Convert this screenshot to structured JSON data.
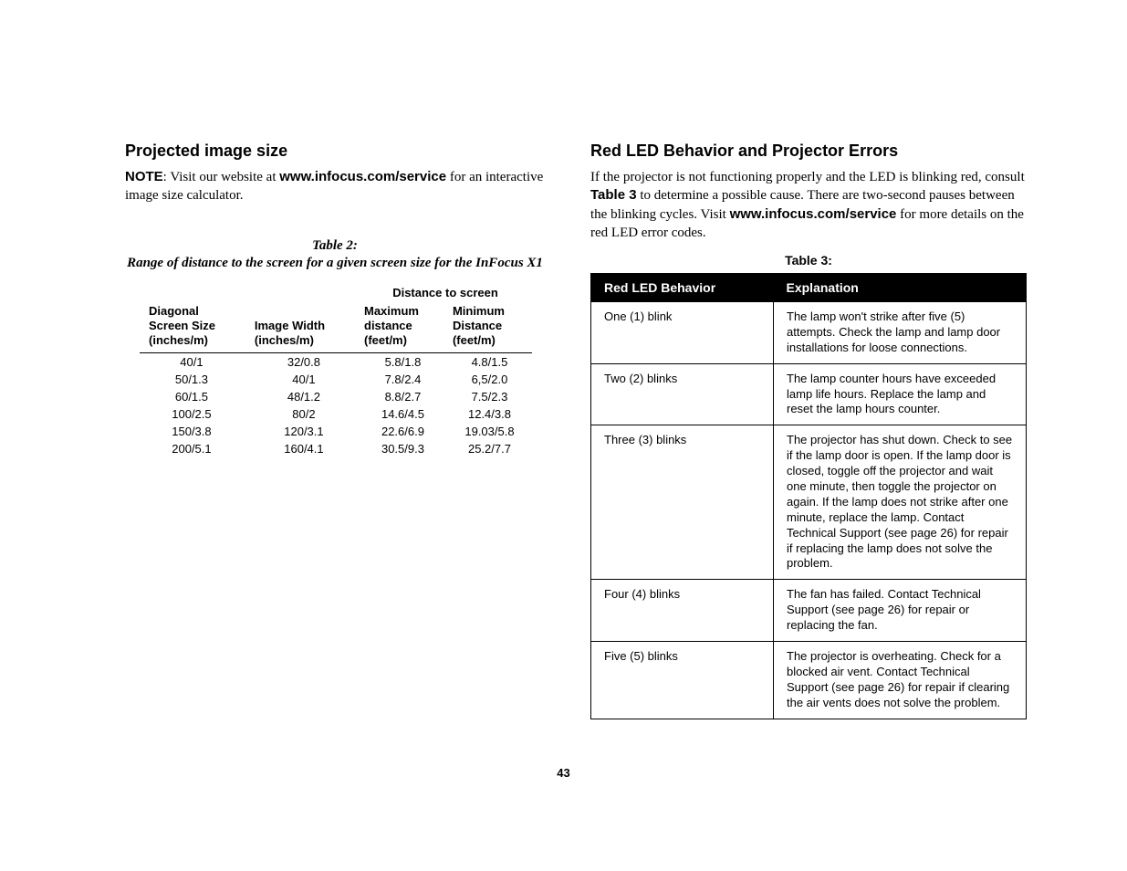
{
  "left": {
    "heading": "Projected image size",
    "note_prefix": "NOTE",
    "note_rest_a": ": Visit our website at ",
    "note_url": "www.infocus.com/service",
    "note_rest_b": " for an interactive image size calculator.",
    "table2_caption_a": "Table 2: ",
    "table2_caption_b": "Range of distance to the screen for a given screen size for the InFocus X1",
    "table2": {
      "span_header": "Distance to screen",
      "columns": [
        "Diagonal Screen Size (inches/m)",
        "Image Width (inches/m)",
        "Maximum distance (feet/m)",
        "Minimum Distance (feet/m)"
      ],
      "rows": [
        [
          "40/1",
          "32/0.8",
          "5.8/1.8",
          "4.8/1.5"
        ],
        [
          "50/1.3",
          "40/1",
          "7.8/2.4",
          "6,5/2.0"
        ],
        [
          "60/1.5",
          "48/1.2",
          "8.8/2.7",
          "7.5/2.3"
        ],
        [
          "100/2.5",
          "80/2",
          "14.6/4.5",
          "12.4/3.8"
        ],
        [
          "150/3.8",
          "120/3.1",
          "22.6/6.9",
          "19.03/5.8"
        ],
        [
          "200/5.1",
          "160/4.1",
          "30.5/9.3",
          "25.2/7.7"
        ]
      ]
    }
  },
  "right": {
    "heading": "Red LED Behavior and Projector Errors",
    "intro_a": "If the projector is not functioning properly and the LED is blinking red, consult ",
    "intro_b": "Table 3",
    "intro_c": " to determine a possible cause. There are two-second pauses between the blinking cycles. Visit ",
    "intro_url": "www.infocus.com/service",
    "intro_d": " for more details on the red LED error codes.",
    "table3_caption": "Table 3: ",
    "table3": {
      "columns": [
        "Red LED Behavior",
        "Explanation"
      ],
      "rows": [
        [
          "One (1) blink",
          "The lamp won't strike after five (5) attempts. Check the lamp and lamp door installations for loose connections."
        ],
        [
          "Two (2) blinks",
          "The lamp counter hours have exceeded lamp life hours. Replace the lamp and reset the lamp hours counter."
        ],
        [
          "Three (3) blinks",
          "The projector has shut down. Check to see if the lamp door is open. If the lamp door is closed, toggle off the projector and wait one minute, then toggle the projector on again. If the lamp does not strike after one minute, replace the lamp. Contact Technical Support (see page 26) for repair if replacing the lamp does not solve the problem."
        ],
        [
          "Four (4) blinks",
          "The fan has failed. Contact Technical Support (see page 26) for repair or replacing the fan."
        ],
        [
          "Five (5) blinks",
          "The projector is overheating. Check for a blocked air vent. Contact Technical Support (see page 26) for repair if clearing the air vents does not solve the problem."
        ]
      ]
    }
  },
  "page_number": "43"
}
